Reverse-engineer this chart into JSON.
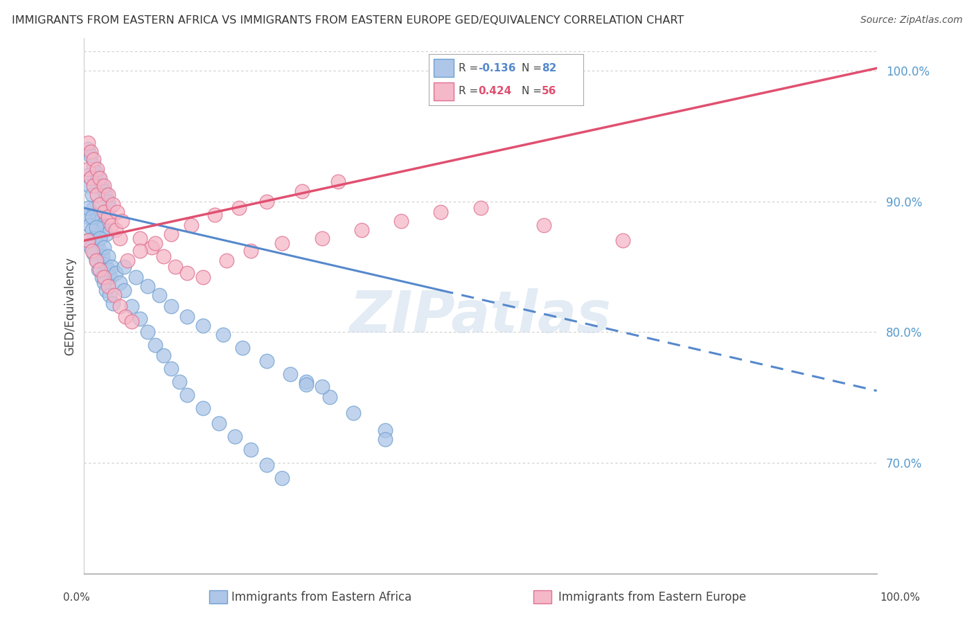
{
  "title": "IMMIGRANTS FROM EASTERN AFRICA VS IMMIGRANTS FROM EASTERN EUROPE GED/EQUIVALENCY CORRELATION CHART",
  "source": "Source: ZipAtlas.com",
  "ylabel": "GED/Equivalency",
  "x_label_bottom_africa": "Immigrants from Eastern Africa",
  "x_label_bottom_europe": "Immigrants from Eastern Europe",
  "r_africa": -0.136,
  "n_africa": 82,
  "r_europe": 0.424,
  "n_europe": 56,
  "xlim": [
    0.0,
    1.0
  ],
  "ylim": [
    0.615,
    1.025
  ],
  "y_ticks": [
    0.7,
    0.8,
    0.9,
    1.0
  ],
  "y_tick_labels": [
    "70.0%",
    "80.0%",
    "90.0%",
    "100.0%"
  ],
  "color_africa": "#aec6e8",
  "color_europe": "#f5b8c8",
  "edge_africa": "#6fa0d0",
  "edge_europe": "#e07090",
  "trend_africa_color": "#5588cc",
  "trend_europe_color": "#e05070",
  "watermark": "ZIPatlas",
  "africa_points_x": [
    0.005,
    0.007,
    0.01,
    0.012,
    0.015,
    0.018,
    0.02,
    0.022,
    0.025,
    0.028,
    0.005,
    0.008,
    0.012,
    0.015,
    0.018,
    0.022,
    0.025,
    0.028,
    0.03,
    0.032,
    0.005,
    0.007,
    0.01,
    0.013,
    0.016,
    0.02,
    0.023,
    0.026,
    0.03,
    0.033,
    0.005,
    0.008,
    0.012,
    0.015,
    0.018,
    0.022,
    0.025,
    0.028,
    0.032,
    0.036,
    0.005,
    0.01,
    0.015,
    0.02,
    0.025,
    0.03,
    0.035,
    0.04,
    0.045,
    0.05,
    0.06,
    0.07,
    0.08,
    0.09,
    0.1,
    0.11,
    0.12,
    0.13,
    0.15,
    0.17,
    0.19,
    0.21,
    0.23,
    0.25,
    0.28,
    0.31,
    0.34,
    0.38,
    0.28,
    0.38,
    0.05,
    0.065,
    0.08,
    0.095,
    0.11,
    0.13,
    0.15,
    0.175,
    0.2,
    0.23,
    0.26,
    0.3
  ],
  "africa_points_y": [
    0.92,
    0.912,
    0.905,
    0.895,
    0.89,
    0.888,
    0.885,
    0.882,
    0.88,
    0.875,
    0.94,
    0.935,
    0.928,
    0.922,
    0.918,
    0.912,
    0.908,
    0.905,
    0.9,
    0.895,
    0.888,
    0.882,
    0.878,
    0.872,
    0.868,
    0.862,
    0.858,
    0.852,
    0.848,
    0.842,
    0.87,
    0.865,
    0.86,
    0.855,
    0.848,
    0.842,
    0.838,
    0.832,
    0.828,
    0.822,
    0.895,
    0.888,
    0.88,
    0.872,
    0.865,
    0.858,
    0.85,
    0.845,
    0.838,
    0.832,
    0.82,
    0.81,
    0.8,
    0.79,
    0.782,
    0.772,
    0.762,
    0.752,
    0.742,
    0.73,
    0.72,
    0.71,
    0.698,
    0.688,
    0.762,
    0.75,
    0.738,
    0.725,
    0.76,
    0.718,
    0.85,
    0.842,
    0.835,
    0.828,
    0.82,
    0.812,
    0.805,
    0.798,
    0.788,
    0.778,
    0.768,
    0.758
  ],
  "europe_points_x": [
    0.005,
    0.008,
    0.012,
    0.016,
    0.02,
    0.025,
    0.03,
    0.035,
    0.04,
    0.045,
    0.005,
    0.008,
    0.012,
    0.016,
    0.02,
    0.025,
    0.03,
    0.036,
    0.042,
    0.048,
    0.005,
    0.01,
    0.015,
    0.02,
    0.025,
    0.03,
    0.038,
    0.045,
    0.052,
    0.06,
    0.07,
    0.085,
    0.1,
    0.115,
    0.13,
    0.15,
    0.18,
    0.21,
    0.25,
    0.3,
    0.35,
    0.4,
    0.45,
    0.5,
    0.58,
    0.68,
    0.055,
    0.07,
    0.09,
    0.11,
    0.135,
    0.165,
    0.195,
    0.23,
    0.275,
    0.32
  ],
  "europe_points_y": [
    0.925,
    0.918,
    0.912,
    0.905,
    0.898,
    0.892,
    0.888,
    0.882,
    0.878,
    0.872,
    0.945,
    0.938,
    0.932,
    0.925,
    0.918,
    0.912,
    0.905,
    0.898,
    0.892,
    0.885,
    0.87,
    0.862,
    0.855,
    0.848,
    0.842,
    0.835,
    0.828,
    0.82,
    0.812,
    0.808,
    0.872,
    0.865,
    0.858,
    0.85,
    0.845,
    0.842,
    0.855,
    0.862,
    0.868,
    0.872,
    0.878,
    0.885,
    0.892,
    0.895,
    0.882,
    0.87,
    0.855,
    0.862,
    0.868,
    0.875,
    0.882,
    0.89,
    0.895,
    0.9,
    0.908,
    0.915
  ],
  "trend_africa_start_x": 0.0,
  "trend_africa_end_x": 1.0,
  "trend_africa_start_y": 0.895,
  "trend_africa_end_y": 0.755,
  "trend_europe_start_x": 0.0,
  "trend_europe_end_x": 1.0,
  "trend_europe_start_y": 0.87,
  "trend_europe_end_y": 1.002
}
